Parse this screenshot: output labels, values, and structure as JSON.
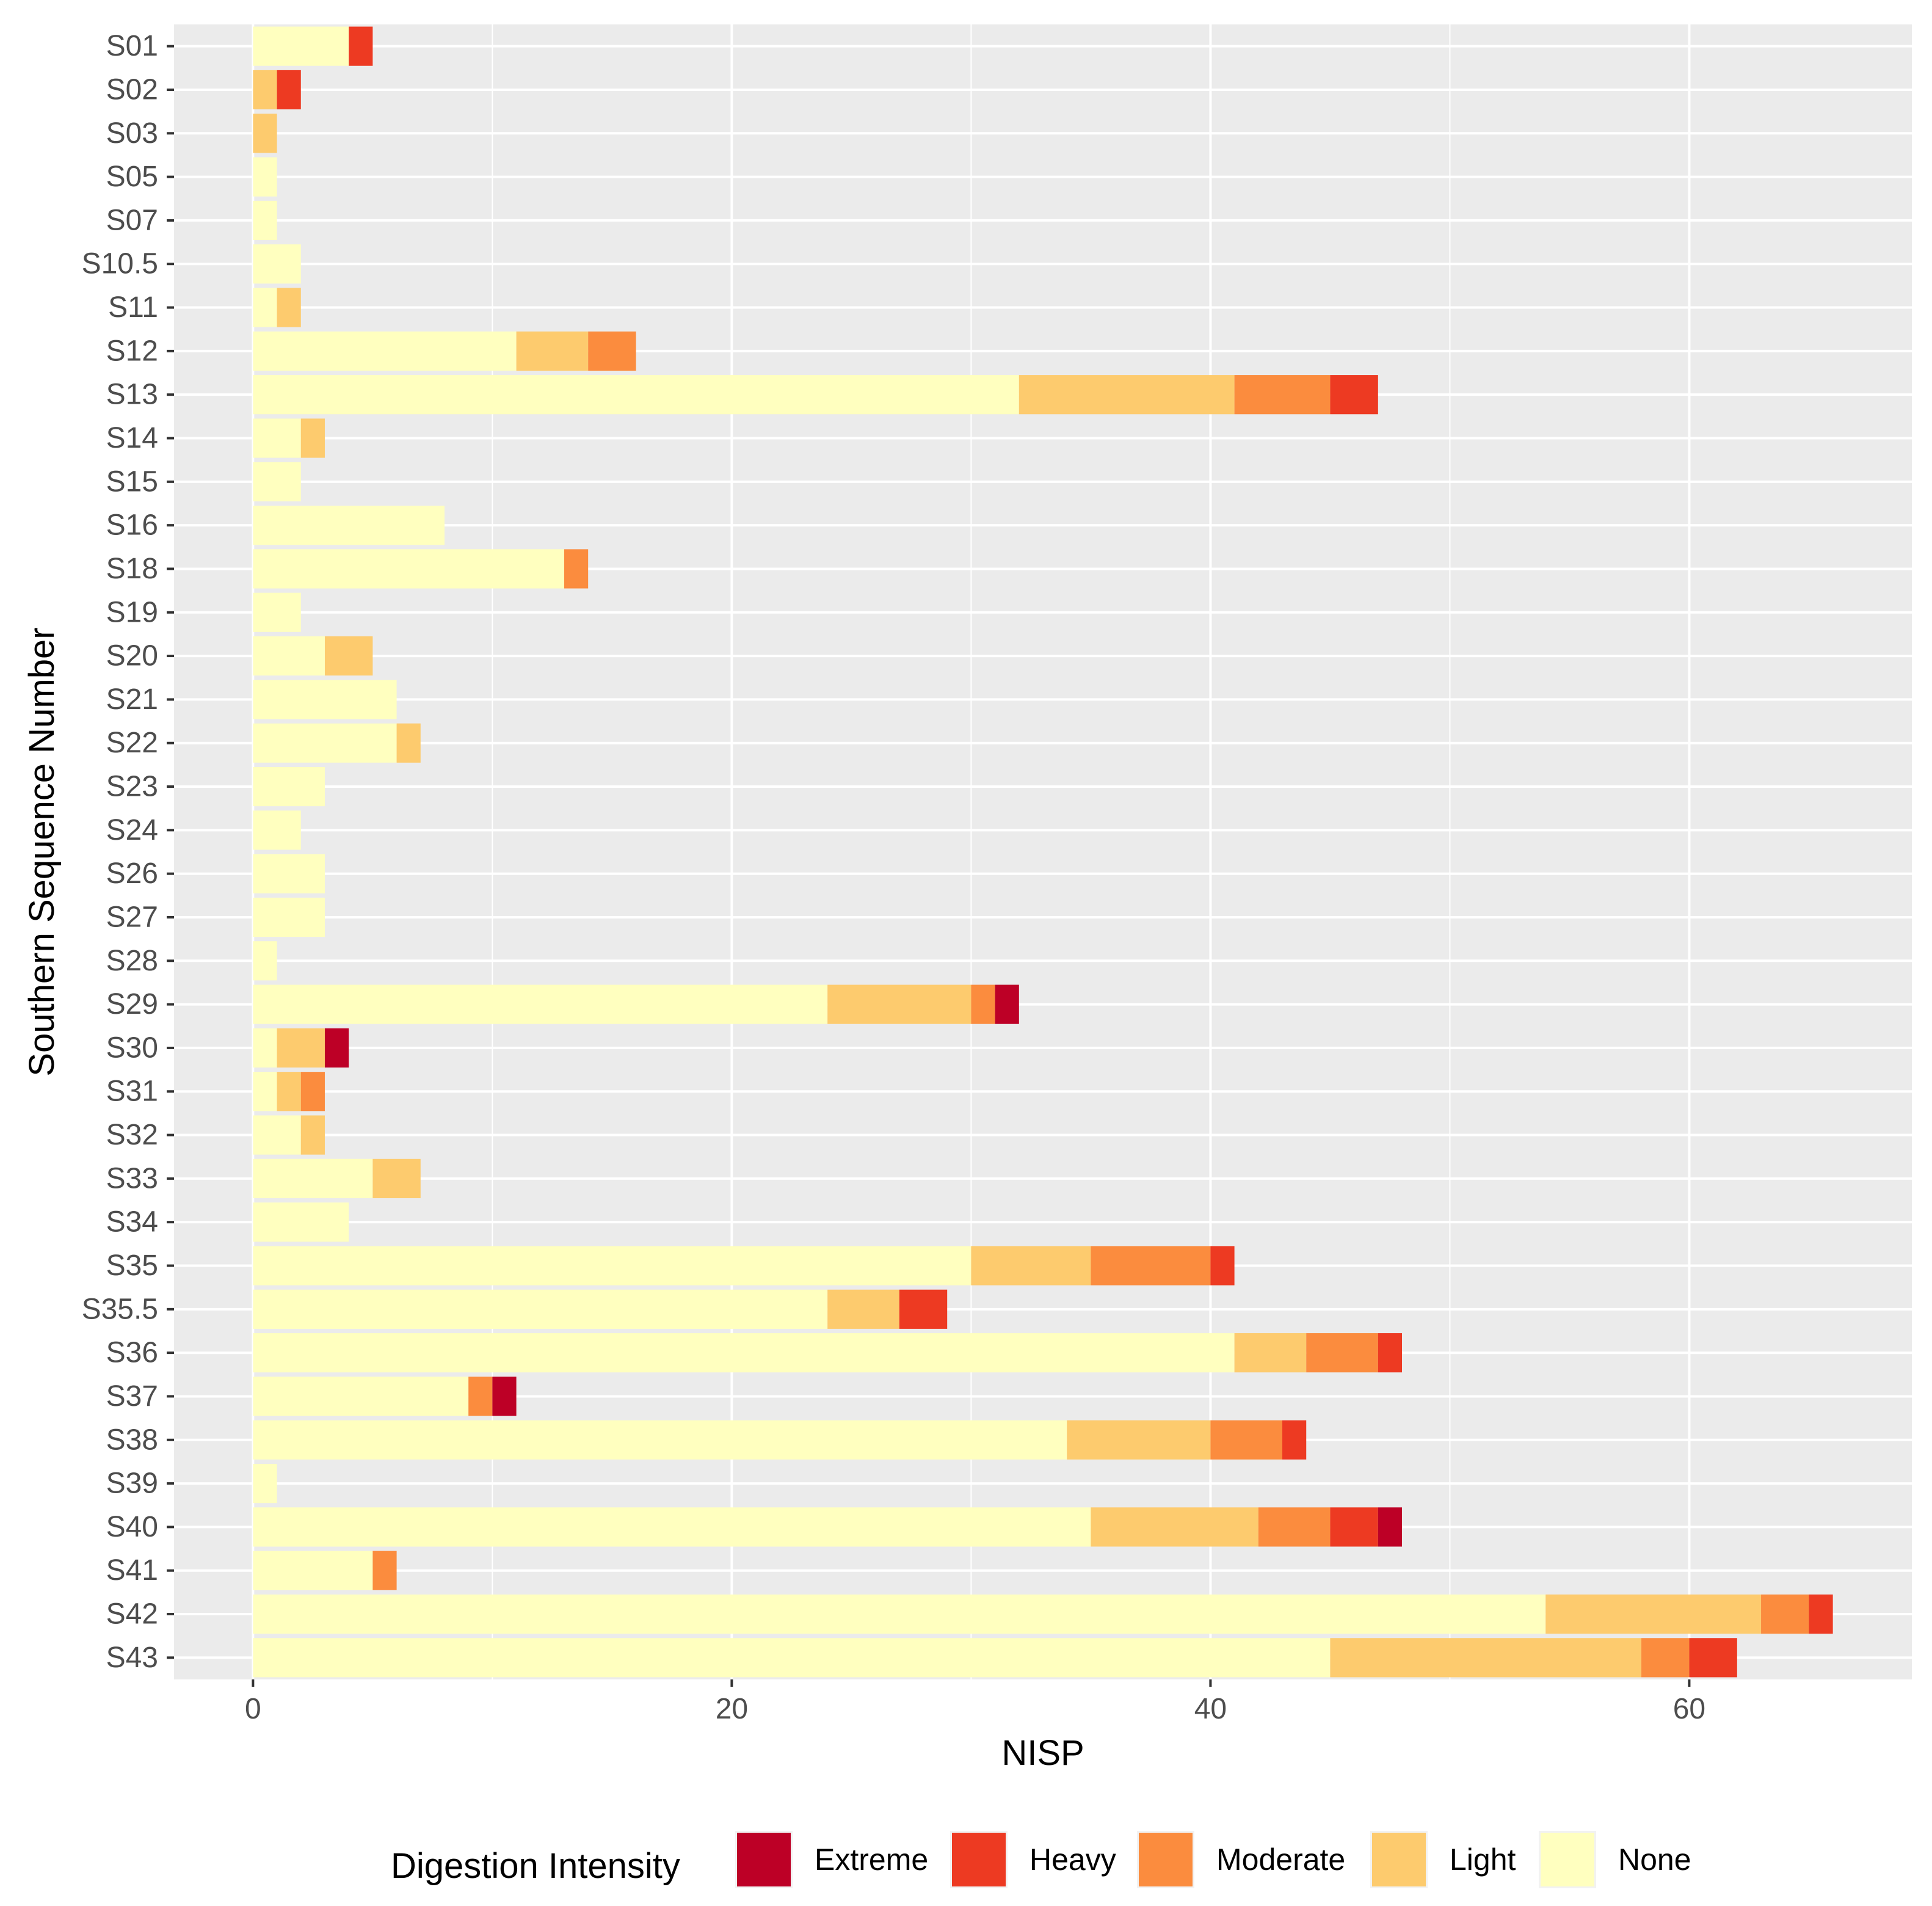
{
  "chart_data": {
    "type": "bar",
    "orientation": "horizontal",
    "stacked": true,
    "xlabel": "NISP",
    "ylabel": "Southern Sequence Number",
    "xlim": [
      -3.3,
      69.3
    ],
    "xticks": [
      0,
      20,
      40,
      60
    ],
    "grid": true,
    "legend_position": "bottom",
    "legend_title": "Digestion Intensity",
    "legend": [
      "Extreme",
      "Heavy",
      "Moderate",
      "Light",
      "None"
    ],
    "colors": {
      "None": "#FFFFBF",
      "Light": "#FDCB6E",
      "Moderate": "#FB8C3E",
      "Heavy": "#ED3A22",
      "Extreme": "#BD0026"
    },
    "stack_order": [
      "None",
      "Light",
      "Moderate",
      "Heavy",
      "Extreme"
    ],
    "categories": [
      "S01",
      "S02",
      "S03",
      "S05",
      "S07",
      "S10.5",
      "S11",
      "S12",
      "S13",
      "S14",
      "S15",
      "S16",
      "S18",
      "S19",
      "S20",
      "S21",
      "S22",
      "S23",
      "S24",
      "S26",
      "S27",
      "S28",
      "S29",
      "S30",
      "S31",
      "S32",
      "S33",
      "S34",
      "S35",
      "S35.5",
      "S36",
      "S37",
      "S38",
      "S39",
      "S40",
      "S41",
      "S42",
      "S43"
    ],
    "series": [
      {
        "name": "None",
        "values": [
          4,
          0,
          0,
          1,
          1,
          2,
          1,
          11,
          32,
          2,
          2,
          8,
          13,
          2,
          3,
          6,
          6,
          3,
          2,
          3,
          3,
          1,
          24,
          1,
          1,
          2,
          5,
          4,
          30,
          24,
          41,
          9,
          34,
          1,
          35,
          5,
          54,
          45
        ]
      },
      {
        "name": "Light",
        "values": [
          0,
          1,
          1,
          0,
          0,
          0,
          1,
          3,
          9,
          1,
          0,
          0,
          0,
          0,
          2,
          0,
          1,
          0,
          0,
          0,
          0,
          0,
          6,
          2,
          1,
          1,
          2,
          0,
          5,
          3,
          3,
          0,
          6,
          0,
          7,
          0,
          9,
          13
        ]
      },
      {
        "name": "Moderate",
        "values": [
          0,
          0,
          0,
          0,
          0,
          0,
          0,
          2,
          4,
          0,
          0,
          0,
          1,
          0,
          0,
          0,
          0,
          0,
          0,
          0,
          0,
          0,
          1,
          0,
          1,
          0,
          0,
          0,
          5,
          0,
          3,
          1,
          3,
          0,
          3,
          1,
          2,
          2
        ]
      },
      {
        "name": "Heavy",
        "values": [
          1,
          1,
          0,
          0,
          0,
          0,
          0,
          0,
          2,
          0,
          0,
          0,
          0,
          0,
          0,
          0,
          0,
          0,
          0,
          0,
          0,
          0,
          0,
          0,
          0,
          0,
          0,
          0,
          1,
          2,
          1,
          0,
          1,
          0,
          2,
          0,
          1,
          2
        ]
      },
      {
        "name": "Extreme",
        "values": [
          0,
          0,
          0,
          0,
          0,
          0,
          0,
          0,
          0,
          0,
          0,
          0,
          0,
          0,
          0,
          0,
          0,
          0,
          0,
          0,
          0,
          0,
          1,
          1,
          0,
          0,
          0,
          0,
          0,
          0,
          0,
          1,
          0,
          0,
          1,
          0,
          0,
          0
        ]
      }
    ]
  }
}
